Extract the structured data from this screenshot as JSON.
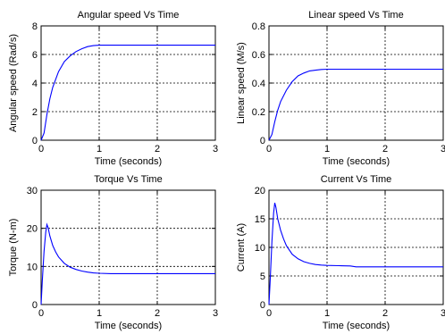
{
  "chart_data": [
    {
      "type": "line",
      "title": "Angular speed Vs Time",
      "xlabel": "Time (seconds)",
      "ylabel": "Angular speed (Rad/s)",
      "xlim": [
        0,
        3
      ],
      "ylim": [
        0,
        8
      ],
      "xticks": [
        0,
        1,
        2,
        3
      ],
      "yticks": [
        0,
        2,
        4,
        6,
        8
      ],
      "grid": true,
      "series": [
        {
          "color": "#0000ff",
          "x": [
            0,
            0.05,
            0.1,
            0.15,
            0.2,
            0.3,
            0.4,
            0.5,
            0.6,
            0.7,
            0.8,
            0.9,
            1.0,
            1.1,
            1.5,
            2.0,
            2.5,
            3.0
          ],
          "y": [
            0,
            0.5,
            1.8,
            2.9,
            3.7,
            4.8,
            5.5,
            5.9,
            6.2,
            6.4,
            6.55,
            6.62,
            6.65,
            6.65,
            6.65,
            6.65,
            6.65,
            6.65
          ]
        }
      ]
    },
    {
      "type": "line",
      "title": "Linear speed Vs Time",
      "xlabel": "Time (seconds)",
      "ylabel": "Linear speed (M/s)",
      "xlim": [
        0,
        3
      ],
      "ylim": [
        0,
        0.8
      ],
      "xticks": [
        0,
        1,
        2,
        3
      ],
      "yticks": [
        0,
        0.2,
        0.4,
        0.6,
        0.8
      ],
      "grid": true,
      "series": [
        {
          "color": "#0000ff",
          "x": [
            0,
            0.05,
            0.1,
            0.15,
            0.2,
            0.3,
            0.4,
            0.5,
            0.6,
            0.7,
            0.8,
            0.9,
            1.0,
            1.1,
            1.5,
            2.0,
            2.5,
            3.0
          ],
          "y": [
            0,
            0.04,
            0.13,
            0.21,
            0.27,
            0.35,
            0.41,
            0.45,
            0.47,
            0.485,
            0.49,
            0.495,
            0.497,
            0.497,
            0.497,
            0.497,
            0.497,
            0.497
          ]
        }
      ]
    },
    {
      "type": "line",
      "title": "Torque Vs Time",
      "xlabel": "Time (seconds)",
      "ylabel": "Torque (N-m)",
      "xlim": [
        0,
        3
      ],
      "ylim": [
        0,
        30
      ],
      "xticks": [
        0,
        1,
        2,
        3
      ],
      "yticks": [
        0,
        10,
        20,
        30
      ],
      "grid": true,
      "series": [
        {
          "color": "#0000ff",
          "x": [
            0,
            0.02,
            0.05,
            0.08,
            0.1,
            0.12,
            0.15,
            0.2,
            0.25,
            0.3,
            0.4,
            0.5,
            0.6,
            0.7,
            0.8,
            0.9,
            1.0,
            1.2,
            1.5,
            2.0,
            2.5,
            3.0
          ],
          "y": [
            0,
            6,
            14,
            19,
            21,
            20.2,
            18,
            15.5,
            13.8,
            12.5,
            10.8,
            9.8,
            9.2,
            8.8,
            8.5,
            8.3,
            8.2,
            8.1,
            8.1,
            8.1,
            8.1,
            8.1
          ]
        }
      ]
    },
    {
      "type": "line",
      "title": "Current Vs Time",
      "xlabel": "Time (seconds)",
      "ylabel": "Current (A)",
      "xlim": [
        0,
        3
      ],
      "ylim": [
        0,
        20
      ],
      "xticks": [
        0,
        1,
        2,
        3
      ],
      "yticks": [
        0,
        5,
        10,
        15,
        20
      ],
      "grid": true,
      "series": [
        {
          "color": "#0000ff",
          "x": [
            0,
            0.02,
            0.05,
            0.08,
            0.1,
            0.12,
            0.15,
            0.2,
            0.25,
            0.3,
            0.4,
            0.5,
            0.6,
            0.7,
            0.8,
            0.9,
            1.0,
            1.2,
            1.4,
            1.5,
            2.0,
            2.5,
            3.0
          ],
          "y": [
            0,
            4,
            11,
            16,
            17.8,
            17,
            15,
            13,
            11.5,
            10.3,
            8.8,
            8,
            7.5,
            7.2,
            7,
            6.9,
            6.85,
            6.8,
            6.75,
            6.6,
            6.6,
            6.6,
            6.6
          ]
        }
      ]
    }
  ]
}
